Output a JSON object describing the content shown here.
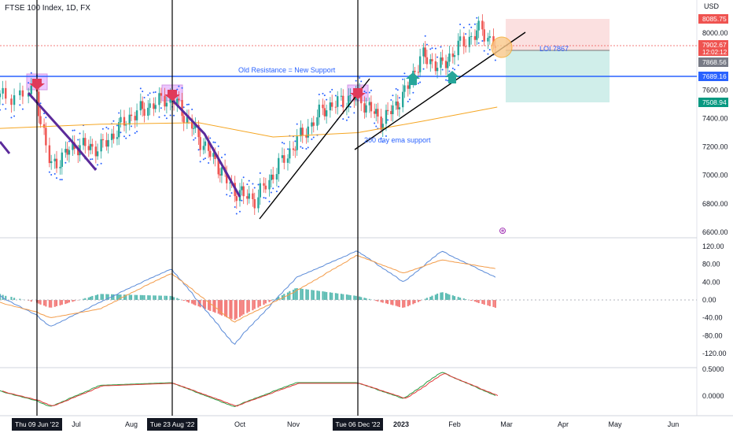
{
  "header": {
    "title": "FTSE 100 Index, 1D, FX",
    "currency": "USD"
  },
  "colors": {
    "up": "#26a69a",
    "down": "#ef5350",
    "ema": "#f5a623",
    "trendline": "#000000",
    "support": "#2962ff",
    "sar": "#2962ff",
    "macd": "#5b8bd8",
    "signal": "#f39c4a",
    "stoch_k": "#2e9e44",
    "stoch_d": "#e03a3a",
    "wedge_purple": "#5b2a9a",
    "highlight": "#d66bff",
    "target_box": "#c8ebe6",
    "stop_box": "#fadada"
  },
  "chart_data": [
    {
      "type": "line",
      "panel": "price",
      "ylim": [
        6600,
        8100
      ],
      "y_ticks": [
        "8000.00",
        "7800.00",
        "7600.00",
        "7400.00",
        "7200.00",
        "7000.00",
        "6800.00",
        "6600.00"
      ],
      "x_ticks": [
        "Jul",
        "Aug",
        "Oct",
        "Nov",
        "2023",
        "Feb",
        "Mar",
        "Apr",
        "May",
        "Jun"
      ],
      "x_markers": [
        "Thu 09 Jun '22",
        "Tue 23 Aug '22",
        "Tue 06 Dec '22"
      ],
      "series": [
        {
          "x": [
            "2022-05-27",
            "2022-06-09",
            "2022-06-17",
            "2022-07-01",
            "2022-07-15",
            "2022-08-01",
            "2022-08-23",
            "2022-09-08",
            "2022-09-30",
            "2022-10-12",
            "2022-10-21",
            "2022-11-03",
            "2022-11-18",
            "2022-12-06",
            "2022-12-21",
            "2023-01-03",
            "2023-01-13",
            "2023-01-25",
            "2023-02-03",
            "2023-02-16",
            "2023-02-24"
          ],
          "close": [
            7550,
            7580,
            7060,
            7210,
            7190,
            7420,
            7560,
            7280,
            6890,
            6830,
            7000,
            7230,
            7470,
            7560,
            7380,
            7560,
            7840,
            7760,
            7900,
            8030,
            7900
          ]
        },
        {
          "name": "200 day ema",
          "x": [
            "2022-05-27",
            "2022-07-15",
            "2022-09-08",
            "2022-10-21",
            "2022-12-06",
            "2023-01-13",
            "2023-02-24"
          ],
          "values": [
            7330,
            7360,
            7370,
            7270,
            7300,
            7380,
            7480
          ]
        }
      ],
      "levels": [
        {
          "price": 7689.16,
          "label": "7689.16",
          "annotation": "Old Resistance = New Support"
        },
        {
          "price": 7867,
          "annotation": "LOI 7867"
        },
        {
          "price": 8085.75,
          "label": "8085.75"
        },
        {
          "price": 7868.56,
          "label": "7868.56"
        },
        {
          "price": 7508.94,
          "label": "7508.94"
        }
      ],
      "last_price": {
        "value": "7902.67",
        "countdown": "12:02:12"
      },
      "annotations": [
        "200 day ema support"
      ]
    },
    {
      "type": "line",
      "panel": "macd",
      "ylim": [
        -140,
        140
      ],
      "y_ticks": [
        "120.00",
        "80.00",
        "40.00",
        "0.00",
        "-40.00",
        "-80.00",
        "-120.00"
      ],
      "series": [
        {
          "x": [
            "2022-05-27",
            "2022-06-17",
            "2022-07-15",
            "2022-08-23",
            "2022-09-30",
            "2022-11-03",
            "2022-12-06",
            "2023-01-03",
            "2023-01-25",
            "2023-02-24"
          ],
          "values": [
            10,
            -60,
            -5,
            70,
            -100,
            50,
            110,
            40,
            110,
            50
          ]
        },
        {
          "x": [
            "2022-05-27",
            "2022-06-17",
            "2022-07-15",
            "2022-08-23",
            "2022-09-30",
            "2022-11-03",
            "2022-12-06",
            "2023-01-03",
            "2023-01-25",
            "2023-02-24"
          ],
          "values": [
            -5,
            -40,
            -20,
            60,
            -50,
            20,
            100,
            60,
            90,
            70
          ]
        }
      ]
    },
    {
      "type": "line",
      "panel": "stochastic",
      "ylim": [
        -0.25,
        0.6
      ],
      "y_ticks": [
        "0.5000",
        "0.0000"
      ],
      "series": [
        {
          "x": [
            "2022-05-27",
            "2022-06-17",
            "2022-07-15",
            "2022-08-23",
            "2022-09-30",
            "2022-11-03",
            "2022-12-06",
            "2023-01-03",
            "2023-01-25",
            "2023-02-24"
          ],
          "values": [
            0.1,
            -0.2,
            0.2,
            0.25,
            -0.2,
            0.25,
            0.25,
            -0.05,
            0.45,
            0.0
          ]
        }
      ]
    }
  ]
}
